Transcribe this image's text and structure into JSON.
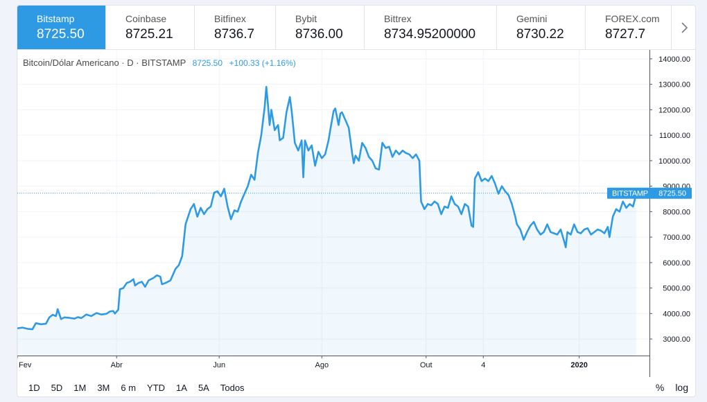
{
  "tabs": [
    {
      "exchange": "Bitstamp",
      "price": "8725.50",
      "active": true
    },
    {
      "exchange": "Coinbase",
      "price": "8725.21"
    },
    {
      "exchange": "Bitfinex",
      "price": "8736.7"
    },
    {
      "exchange": "Bybit",
      "price": "8736.00"
    },
    {
      "exchange": "Bittrex",
      "price": "8734.95200000"
    },
    {
      "exchange": "Gemini",
      "price": "8730.22"
    },
    {
      "exchange": "FOREX.com",
      "price": "8727.7"
    }
  ],
  "legend": {
    "symbol": "Bitcoin/Dólar Americano · D · BITSTAMP",
    "last": "8725.50",
    "change": "+100.33 (+1.16%)"
  },
  "price_label": {
    "name": "BITSTAMP",
    "value": "8725.50"
  },
  "ranges": [
    "1D",
    "5D",
    "1M",
    "3M",
    "6 m",
    "YTD",
    "1A",
    "5A",
    "Todos"
  ],
  "controls": {
    "percent": "%",
    "log": "log"
  },
  "colors": {
    "line": "#2e9ae4",
    "fill": "#2e9ae4",
    "grid": "#f0f3fa",
    "text": "#131722"
  },
  "chart_data": {
    "type": "area",
    "title": "Bitcoin/Dólar Americano · D · BITSTAMP",
    "x_ticks": [
      {
        "day": 0,
        "label": "Fev"
      },
      {
        "day": 59,
        "label": "Abr"
      },
      {
        "day": 120,
        "label": "Jun"
      },
      {
        "day": 181,
        "label": "Ago"
      },
      {
        "day": 243,
        "label": "Out"
      },
      {
        "day": 277,
        "label": "4"
      },
      {
        "day": 334,
        "label": "2020"
      }
    ],
    "xlim": [
      0,
      360
    ],
    "y_ticks": [
      3000,
      4000,
      5000,
      6000,
      7000,
      8000,
      9000,
      10000,
      11000,
      12000,
      13000,
      14000
    ],
    "y_tick_labels": [
      "3000.00",
      "4000.00",
      "5000.00",
      "6000.00",
      "7000.00",
      "8000.00",
      "9000.00",
      "10000.00",
      "11000.00",
      "12000.00",
      "13000.00",
      "14000.00"
    ],
    "ylim": [
      2350,
      14350
    ],
    "last_value": 8725.5,
    "series": [
      {
        "name": "BITSTAMP",
        "points": [
          [
            0,
            3420
          ],
          [
            3,
            3450
          ],
          [
            6,
            3400
          ],
          [
            9,
            3380
          ],
          [
            11,
            3620
          ],
          [
            14,
            3580
          ],
          [
            17,
            3600
          ],
          [
            19,
            3850
          ],
          [
            21,
            3950
          ],
          [
            23,
            3900
          ],
          [
            24,
            4170
          ],
          [
            26,
            3780
          ],
          [
            28,
            3850
          ],
          [
            31,
            3830
          ],
          [
            34,
            3800
          ],
          [
            36,
            3860
          ],
          [
            38,
            3820
          ],
          [
            41,
            3960
          ],
          [
            44,
            3900
          ],
          [
            47,
            4020
          ],
          [
            50,
            3960
          ],
          [
            53,
            3990
          ],
          [
            55,
            4080
          ],
          [
            57,
            4100
          ],
          [
            58,
            4000
          ],
          [
            60,
            4150
          ],
          [
            61,
            4950
          ],
          [
            63,
            5000
          ],
          [
            65,
            5200
          ],
          [
            67,
            5250
          ],
          [
            69,
            5350
          ],
          [
            70,
            5100
          ],
          [
            72,
            5200
          ],
          [
            74,
            5250
          ],
          [
            76,
            5050
          ],
          [
            78,
            5300
          ],
          [
            81,
            5400
          ],
          [
            83,
            5500
          ],
          [
            85,
            5450
          ],
          [
            86,
            5150
          ],
          [
            88,
            5200
          ],
          [
            91,
            5300
          ],
          [
            94,
            5750
          ],
          [
            96,
            5900
          ],
          [
            98,
            6250
          ],
          [
            100,
            7500
          ],
          [
            101,
            7700
          ],
          [
            103,
            8100
          ],
          [
            105,
            8300
          ],
          [
            107,
            7800
          ],
          [
            109,
            8150
          ],
          [
            111,
            7900
          ],
          [
            113,
            8100
          ],
          [
            115,
            8200
          ],
          [
            117,
            8750
          ],
          [
            119,
            8800
          ],
          [
            121,
            8600
          ],
          [
            123,
            8900
          ],
          [
            125,
            8200
          ],
          [
            127,
            7700
          ],
          [
            129,
            8050
          ],
          [
            131,
            8000
          ],
          [
            133,
            8400
          ],
          [
            135,
            8700
          ],
          [
            137,
            9000
          ],
          [
            139,
            9450
          ],
          [
            141,
            9250
          ],
          [
            143,
            10300
          ],
          [
            145,
            11000
          ],
          [
            147,
            12100
          ],
          [
            148,
            12900
          ],
          [
            149,
            12200
          ],
          [
            150,
            11400
          ],
          [
            151,
            12000
          ],
          [
            153,
            11200
          ],
          [
            155,
            11400
          ],
          [
            156,
            10800
          ],
          [
            158,
            10900
          ],
          [
            160,
            11900
          ],
          [
            162,
            12500
          ],
          [
            163,
            12000
          ],
          [
            165,
            10700
          ],
          [
            167,
            10400
          ],
          [
            169,
            10800
          ],
          [
            170,
            9350
          ],
          [
            171,
            10800
          ],
          [
            173,
            10400
          ],
          [
            175,
            10600
          ],
          [
            177,
            9800
          ],
          [
            179,
            10350
          ],
          [
            181,
            10100
          ],
          [
            183,
            10250
          ],
          [
            185,
            10800
          ],
          [
            186,
            11200
          ],
          [
            188,
            11950
          ],
          [
            189,
            12050
          ],
          [
            191,
            11400
          ],
          [
            192,
            11850
          ],
          [
            193,
            11900
          ],
          [
            195,
            11600
          ],
          [
            197,
            11300
          ],
          [
            199,
            10300
          ],
          [
            200,
            9900
          ],
          [
            201,
            10200
          ],
          [
            203,
            10000
          ],
          [
            205,
            10700
          ],
          [
            207,
            10500
          ],
          [
            209,
            10150
          ],
          [
            211,
            10000
          ],
          [
            213,
            9700
          ],
          [
            215,
            9650
          ],
          [
            217,
            10700
          ],
          [
            219,
            10500
          ],
          [
            221,
            10550
          ],
          [
            223,
            10150
          ],
          [
            225,
            10400
          ],
          [
            227,
            10250
          ],
          [
            229,
            10400
          ],
          [
            231,
            10300
          ],
          [
            233,
            10250
          ],
          [
            235,
            10100
          ],
          [
            237,
            10250
          ],
          [
            239,
            10000
          ],
          [
            240,
            8400
          ],
          [
            242,
            8100
          ],
          [
            244,
            8300
          ],
          [
            246,
            8250
          ],
          [
            248,
            8400
          ],
          [
            250,
            8300
          ],
          [
            252,
            7900
          ],
          [
            254,
            8200
          ],
          [
            256,
            8150
          ],
          [
            258,
            8600
          ],
          [
            260,
            8300
          ],
          [
            262,
            8200
          ],
          [
            264,
            7900
          ],
          [
            266,
            8300
          ],
          [
            268,
            8200
          ],
          [
            270,
            7450
          ],
          [
            271,
            7400
          ],
          [
            272,
            9300
          ],
          [
            274,
            9550
          ],
          [
            276,
            9200
          ],
          [
            278,
            9300
          ],
          [
            280,
            9200
          ],
          [
            282,
            9400
          ],
          [
            284,
            9100
          ],
          [
            286,
            8700
          ],
          [
            288,
            9000
          ],
          [
            290,
            8800
          ],
          [
            292,
            8650
          ],
          [
            294,
            8300
          ],
          [
            296,
            7800
          ],
          [
            297,
            7500
          ],
          [
            299,
            7300
          ],
          [
            301,
            6900
          ],
          [
            303,
            7200
          ],
          [
            305,
            7450
          ],
          [
            307,
            7600
          ],
          [
            309,
            7300
          ],
          [
            311,
            7100
          ],
          [
            313,
            7200
          ],
          [
            315,
            7500
          ],
          [
            317,
            7200
          ],
          [
            319,
            7150
          ],
          [
            321,
            7100
          ],
          [
            323,
            7300
          ],
          [
            325,
            6850
          ],
          [
            326,
            6600
          ],
          [
            327,
            7200
          ],
          [
            329,
            7100
          ],
          [
            331,
            7500
          ],
          [
            333,
            7200
          ],
          [
            335,
            7150
          ],
          [
            337,
            7300
          ],
          [
            339,
            7350
          ],
          [
            341,
            7100
          ],
          [
            343,
            7200
          ],
          [
            345,
            7300
          ],
          [
            347,
            7250
          ],
          [
            349,
            7150
          ],
          [
            351,
            7400
          ],
          [
            352,
            7000
          ],
          [
            354,
            7800
          ],
          [
            356,
            8100
          ],
          [
            358,
            8000
          ],
          [
            360,
            8400
          ],
          [
            362,
            8150
          ],
          [
            364,
            8300
          ],
          [
            366,
            8200
          ],
          [
            368,
            8725.5
          ]
        ]
      }
    ]
  }
}
